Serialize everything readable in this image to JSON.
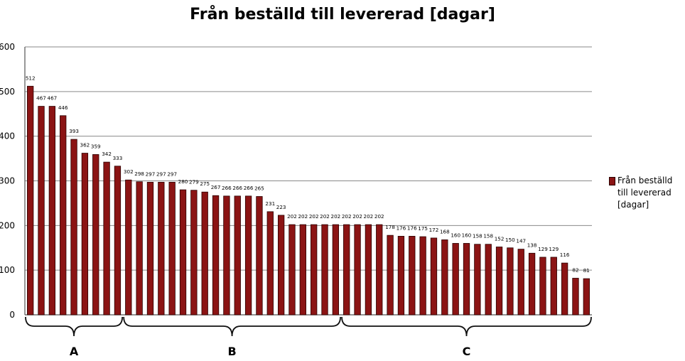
{
  "chart_data": {
    "type": "bar",
    "title": "Från beställd till levererad [dagar]",
    "ylim": [
      0,
      600
    ],
    "yticks": [
      0,
      100,
      200,
      300,
      400,
      500,
      600
    ],
    "grid": true,
    "legend_position": "right",
    "series": [
      {
        "name": "Från beställd till levererad [dagar]",
        "color": "#8B1414",
        "values": [
          512,
          467,
          467,
          446,
          393,
          362,
          359,
          342,
          333,
          302,
          298,
          297,
          297,
          297,
          280,
          279,
          275,
          267,
          266,
          266,
          266,
          265,
          231,
          223,
          202,
          202,
          202,
          202,
          202,
          202,
          202,
          202,
          202,
          178,
          176,
          176,
          175,
          172,
          168,
          160,
          160,
          158,
          158,
          152,
          150,
          147,
          138,
          129,
          129,
          116,
          82,
          81
        ]
      }
    ],
    "groups": [
      {
        "label": "A",
        "start": 0,
        "end": 8
      },
      {
        "label": "B",
        "start": 9,
        "end": 28
      },
      {
        "label": "C",
        "start": 29,
        "end": 51
      }
    ]
  }
}
